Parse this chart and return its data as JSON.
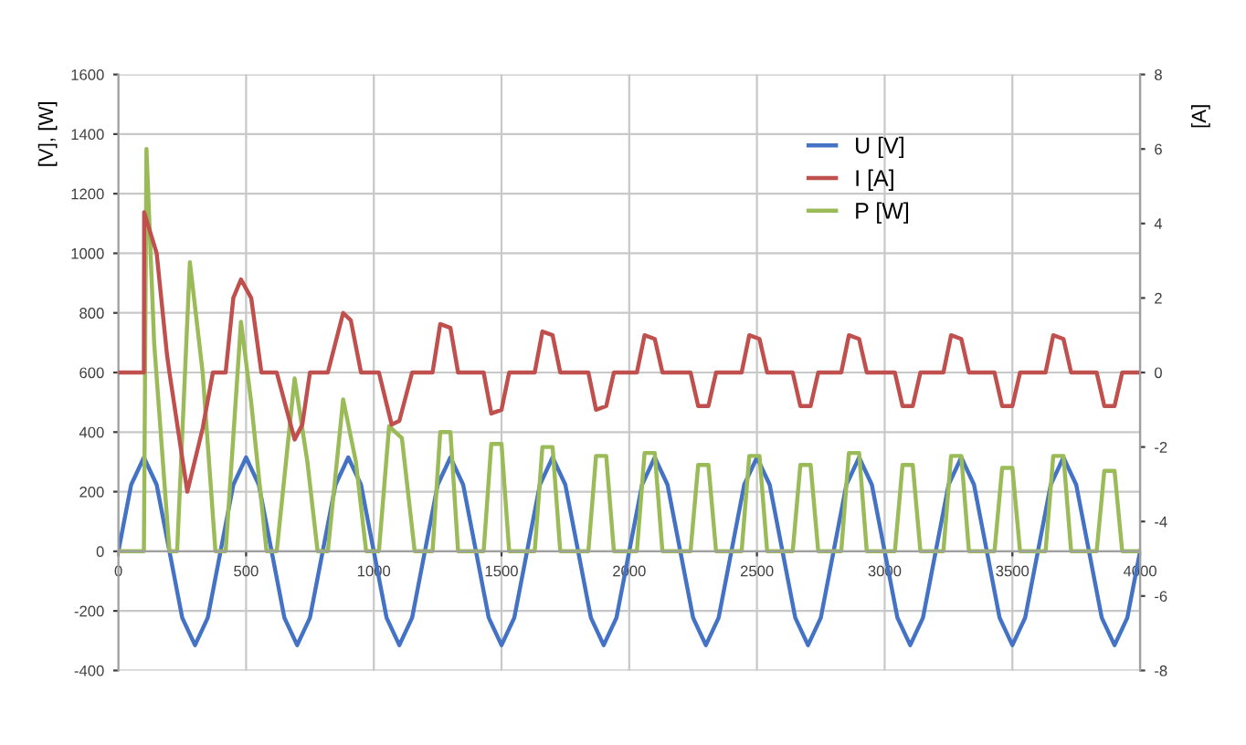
{
  "chart_data": {
    "type": "line",
    "ylabel": "[V], [W]",
    "y2label": "[A]",
    "xlim": [
      0,
      4000
    ],
    "xticks": [
      0,
      500,
      1000,
      1500,
      2000,
      2500,
      3000,
      3500,
      4000
    ],
    "ylim": [
      -400,
      1600
    ],
    "yticks": [
      -400,
      -200,
      0,
      200,
      400,
      600,
      800,
      1000,
      1200,
      1400,
      1600
    ],
    "y2lim": [
      -8,
      8
    ],
    "y2ticks": [
      -8,
      -6,
      -4,
      -2,
      0,
      2,
      4,
      6,
      8
    ],
    "grid": true,
    "legend": "top",
    "marker": "none",
    "line_style": "solid",
    "series": [
      {
        "name": "U [V]",
        "color": "#4472c4",
        "x": [
          0,
          50,
          100,
          150,
          200,
          250,
          300,
          350,
          400,
          450,
          500,
          550,
          600,
          650,
          700,
          750,
          800,
          850,
          900,
          950,
          1000,
          1050,
          1100,
          1150,
          1200,
          1250,
          1300,
          1350,
          1400,
          1450,
          1500,
          1550,
          1600,
          1650,
          1700,
          1750,
          1800,
          1850,
          1900,
          1950,
          2000,
          2050,
          2100,
          2150,
          2200,
          2250,
          2300,
          2350,
          2400,
          2450,
          2500,
          2550,
          2600,
          2650,
          2700,
          2750,
          2800,
          2850,
          2900,
          2950,
          3000,
          3050,
          3100,
          3150,
          3200,
          3250,
          3300,
          3350,
          3400,
          3450,
          3500,
          3550,
          3600,
          3650,
          3700,
          3750,
          3800,
          3850,
          3900,
          3950,
          4000
        ],
        "values": [
          0,
          223,
          315,
          223,
          0,
          -223,
          -315,
          -223,
          0,
          223,
          315,
          223,
          0,
          -223,
          -315,
          -223,
          0,
          223,
          315,
          223,
          0,
          -223,
          -315,
          -223,
          0,
          223,
          315,
          223,
          0,
          -223,
          -315,
          -223,
          0,
          223,
          315,
          223,
          0,
          -223,
          -315,
          -223,
          0,
          223,
          315,
          223,
          0,
          -223,
          -315,
          -223,
          0,
          223,
          315,
          223,
          0,
          -223,
          -315,
          -223,
          0,
          223,
          315,
          223,
          0,
          -223,
          -315,
          -223,
          0,
          223,
          315,
          223,
          0,
          -223,
          -315,
          -223,
          0,
          223,
          315,
          223,
          0,
          -223,
          -315,
          -223,
          0
        ]
      },
      {
        "name": "I [A]",
        "color": "#c0504d",
        "axis": "y2",
        "x": [
          0,
          100,
          101,
          150,
          190,
          200,
          270,
          330,
          370,
          420,
          450,
          480,
          520,
          560,
          620,
          690,
          720,
          750,
          820,
          880,
          910,
          950,
          1020,
          1070,
          1100,
          1150,
          1230,
          1260,
          1300,
          1330,
          1430,
          1460,
          1500,
          1530,
          1630,
          1660,
          1700,
          1730,
          1840,
          1870,
          1910,
          1940,
          2030,
          2060,
          2100,
          2130,
          2240,
          2270,
          2310,
          2340,
          2440,
          2470,
          2510,
          2540,
          2640,
          2670,
          2710,
          2740,
          2830,
          2860,
          2900,
          2930,
          3040,
          3070,
          3110,
          3140,
          3230,
          3260,
          3300,
          3330,
          3430,
          3460,
          3500,
          3530,
          3630,
          3660,
          3700,
          3730,
          3830,
          3860,
          3900,
          3930,
          4000
        ],
        "values": [
          0,
          0,
          4.3,
          3.2,
          0.5,
          0,
          -3.2,
          -1.5,
          0,
          0,
          2.0,
          2.5,
          2.0,
          0,
          0,
          -1.8,
          -1.4,
          0,
          0,
          1.6,
          1.4,
          0,
          0,
          -1.4,
          -1.3,
          0,
          0,
          1.3,
          1.2,
          0,
          0,
          -1.1,
          -1.0,
          0,
          0,
          1.1,
          1.0,
          0,
          0,
          -1.0,
          -0.9,
          0,
          0,
          1.0,
          0.9,
          0,
          0,
          -0.9,
          -0.9,
          0,
          0,
          1.0,
          0.9,
          0,
          0,
          -0.9,
          -0.9,
          0,
          0,
          1.0,
          0.9,
          0,
          0,
          -0.9,
          -0.9,
          0,
          0,
          1.0,
          0.9,
          0,
          0,
          -0.9,
          -0.9,
          0,
          0,
          1.0,
          0.9,
          0,
          0,
          -0.9,
          -0.9,
          0,
          0
        ]
      },
      {
        "name": "P [W]",
        "color": "#9bbb59",
        "x": [
          0,
          100,
          110,
          140,
          200,
          230,
          280,
          330,
          380,
          420,
          480,
          520,
          580,
          620,
          690,
          740,
          780,
          820,
          880,
          930,
          970,
          1020,
          1060,
          1110,
          1160,
          1230,
          1260,
          1300,
          1330,
          1430,
          1460,
          1500,
          1530,
          1630,
          1660,
          1700,
          1730,
          1840,
          1870,
          1910,
          1940,
          2030,
          2060,
          2100,
          2130,
          2240,
          2270,
          2310,
          2340,
          2440,
          2470,
          2510,
          2540,
          2640,
          2670,
          2710,
          2740,
          2830,
          2860,
          2900,
          2930,
          3040,
          3070,
          3110,
          3140,
          3230,
          3260,
          3300,
          3330,
          3430,
          3460,
          3500,
          3530,
          3630,
          3660,
          3700,
          3730,
          3830,
          3860,
          3900,
          3930,
          4000
        ],
        "values": [
          0,
          0,
          1350,
          700,
          0,
          0,
          970,
          600,
          0,
          0,
          770,
          500,
          0,
          0,
          580,
          300,
          0,
          0,
          510,
          300,
          0,
          0,
          420,
          380,
          0,
          0,
          400,
          400,
          0,
          0,
          360,
          360,
          0,
          0,
          350,
          350,
          0,
          0,
          320,
          320,
          0,
          0,
          330,
          330,
          0,
          0,
          290,
          290,
          0,
          0,
          320,
          320,
          0,
          0,
          290,
          290,
          0,
          0,
          330,
          330,
          0,
          0,
          290,
          290,
          0,
          0,
          320,
          320,
          0,
          0,
          280,
          280,
          0,
          0,
          320,
          320,
          0,
          0,
          270,
          270,
          0,
          0
        ]
      }
    ]
  }
}
